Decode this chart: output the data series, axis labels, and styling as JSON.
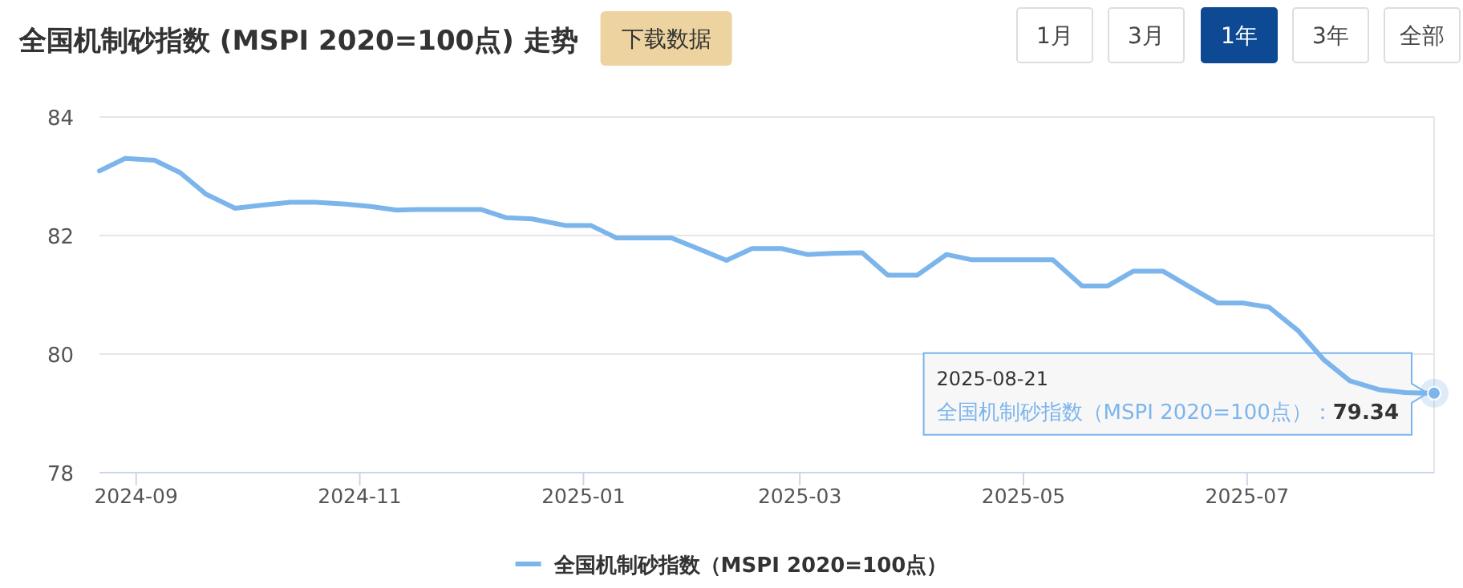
{
  "chart_data": {
    "type": "line",
    "title": "全国机制砂指数 (MSPI 2020=100点) 走势",
    "x": [
      "2024-08-22",
      "2024-08-29",
      "2024-09-06",
      "2024-09-13",
      "2024-09-20",
      "2024-09-28",
      "2024-10-05",
      "2024-10-13",
      "2024-10-20",
      "2024-10-28",
      "2024-11-04",
      "2024-11-11",
      "2024-11-18",
      "2024-11-25",
      "2024-12-04",
      "2024-12-11",
      "2024-12-18",
      "2024-12-27",
      "2025-01-03",
      "2025-01-10",
      "2025-01-18",
      "2025-01-25",
      "2025-02-02",
      "2025-02-09",
      "2025-02-16",
      "2025-02-24",
      "2025-03-03",
      "2025-03-10",
      "2025-03-18",
      "2025-03-25",
      "2025-04-02",
      "2025-04-10",
      "2025-04-17",
      "2025-04-25",
      "2025-05-02",
      "2025-05-09",
      "2025-05-17",
      "2025-05-24",
      "2025-05-31",
      "2025-06-08",
      "2025-06-16",
      "2025-06-23",
      "2025-06-30",
      "2025-07-07",
      "2025-07-15",
      "2025-07-22",
      "2025-07-29",
      "2025-08-06",
      "2025-08-13",
      "2025-08-21"
    ],
    "series": [
      {
        "name": "全国机制砂指数（MSPI 2020=100点）",
        "color": "#7cb5ec",
        "values": [
          83.09,
          83.3,
          83.27,
          83.06,
          82.7,
          82.46,
          82.51,
          82.56,
          82.56,
          82.53,
          82.49,
          82.43,
          82.44,
          82.44,
          82.44,
          82.3,
          82.28,
          82.17,
          82.17,
          81.96,
          81.96,
          81.96,
          81.76,
          81.58,
          81.78,
          81.78,
          81.68,
          81.7,
          81.71,
          81.33,
          81.33,
          81.68,
          81.59,
          81.59,
          81.59,
          81.59,
          81.15,
          81.15,
          81.4,
          81.4,
          81.11,
          80.86,
          80.86,
          80.79,
          80.39,
          79.9,
          79.55,
          79.4,
          79.35,
          79.34
        ]
      }
    ],
    "xlim": [
      "2024-08-22",
      "2025-08-21"
    ],
    "xticks": [
      "2024-09",
      "2024-11",
      "2025-01",
      "2025-03",
      "2025-05",
      "2025-07"
    ],
    "ylim": [
      78,
      84
    ],
    "yticks": [
      78,
      80,
      82,
      84
    ],
    "grid": "y",
    "legend": "bottom",
    "annotations": [
      "下载数据",
      "1月",
      "3月",
      "1年",
      "3年",
      "全部",
      "2025-08-21",
      "全国机制砂指数（MSPI 2020=100点）：",
      {
        "text": "79.34",
        "x": "2025-08-21",
        "y": 79.34
      }
    ]
  }
}
